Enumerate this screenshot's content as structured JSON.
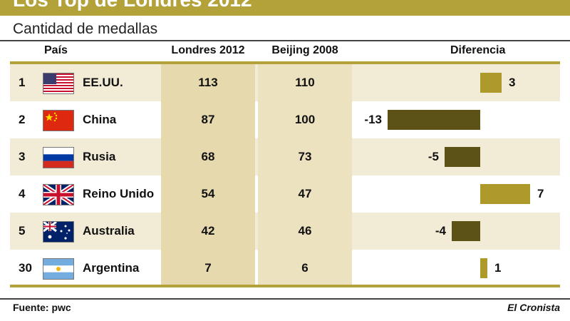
{
  "header": {
    "title": "Los Top de Londres 2012",
    "subtitle": "Cantidad de medallas"
  },
  "columns": {
    "country": "País",
    "london": "Londres 2012",
    "beijing": "Beijing 2008",
    "difference": "Diferencia"
  },
  "footer": {
    "source": "Fuente: pwc",
    "brand": "El Cronista"
  },
  "colors": {
    "gold": "#b3a23a",
    "positive_bar": "#ad9a2a",
    "negative_bar": "#5c5216",
    "row_shade": "#f2ebd5",
    "london_column": "#e6d9ad",
    "beijing_column": "#ede2bf"
  },
  "chart_data": {
    "type": "table",
    "title": "Los Top de Londres 2012",
    "subtitle": "Cantidad de medallas",
    "rows": [
      {
        "rank": "1",
        "country": "EE.UU.",
        "flag": "usa-flag-icon",
        "london_2012": "113",
        "beijing_2008": "110",
        "difference": 3,
        "difference_label": "3"
      },
      {
        "rank": "2",
        "country": "China",
        "flag": "china-flag-icon",
        "london_2012": "87",
        "beijing_2008": "100",
        "difference": -13,
        "difference_label": "-13"
      },
      {
        "rank": "3",
        "country": "Rusia",
        "flag": "russia-flag-icon",
        "london_2012": "68",
        "beijing_2008": "73",
        "difference": -5,
        "difference_label": "-5"
      },
      {
        "rank": "4",
        "country": "Reino Unido",
        "flag": "uk-flag-icon",
        "london_2012": "54",
        "beijing_2008": "47",
        "difference": 7,
        "difference_label": "7"
      },
      {
        "rank": "5",
        "country": "Australia",
        "flag": "australia-flag-icon",
        "london_2012": "42",
        "beijing_2008": "46",
        "difference": -4,
        "difference_label": "-4"
      },
      {
        "rank": "30",
        "country": "Argentina",
        "flag": "argentina-flag-icon",
        "london_2012": "7",
        "beijing_2008": "6",
        "difference": 1,
        "difference_label": "1"
      }
    ]
  }
}
